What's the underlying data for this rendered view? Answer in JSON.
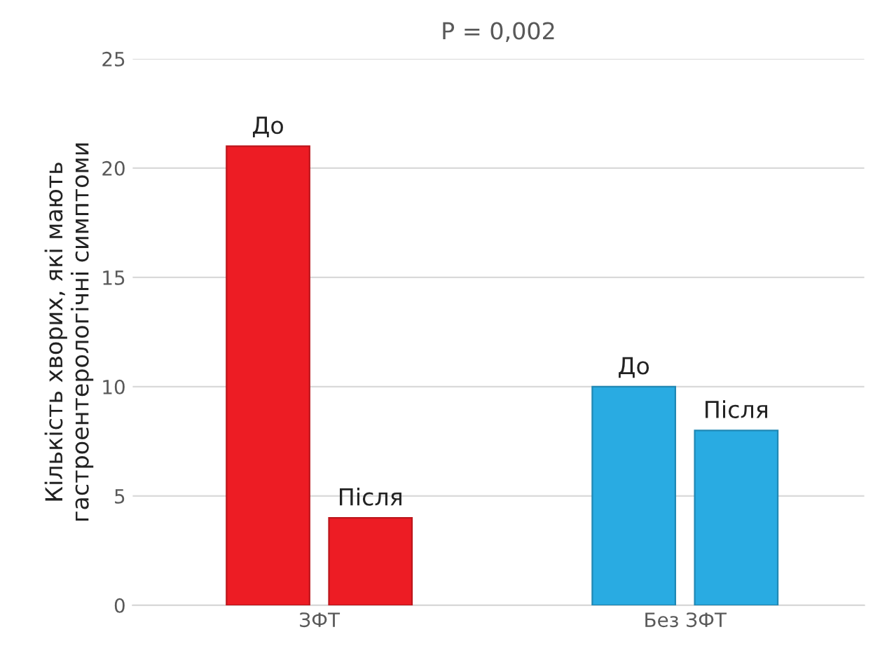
{
  "chart_data": {
    "type": "bar",
    "title": "P = 0,002",
    "ylabel": "Кількість хворих, які мають\nгастроентерологічні симптоми",
    "categories": [
      "ЗФТ",
      "Без ЗФТ"
    ],
    "series": [
      {
        "name": "До",
        "colors": [
          "#ed1c24",
          "#29abe2"
        ],
        "values": [
          21,
          10
        ]
      },
      {
        "name": "Після",
        "colors": [
          "#ed1c24",
          "#29abe2"
        ],
        "values": [
          4,
          8
        ]
      }
    ],
    "ylim": [
      0,
      25
    ],
    "yticks": [
      0,
      5,
      10,
      15,
      20,
      25
    ],
    "grid": "y",
    "legend": false
  }
}
